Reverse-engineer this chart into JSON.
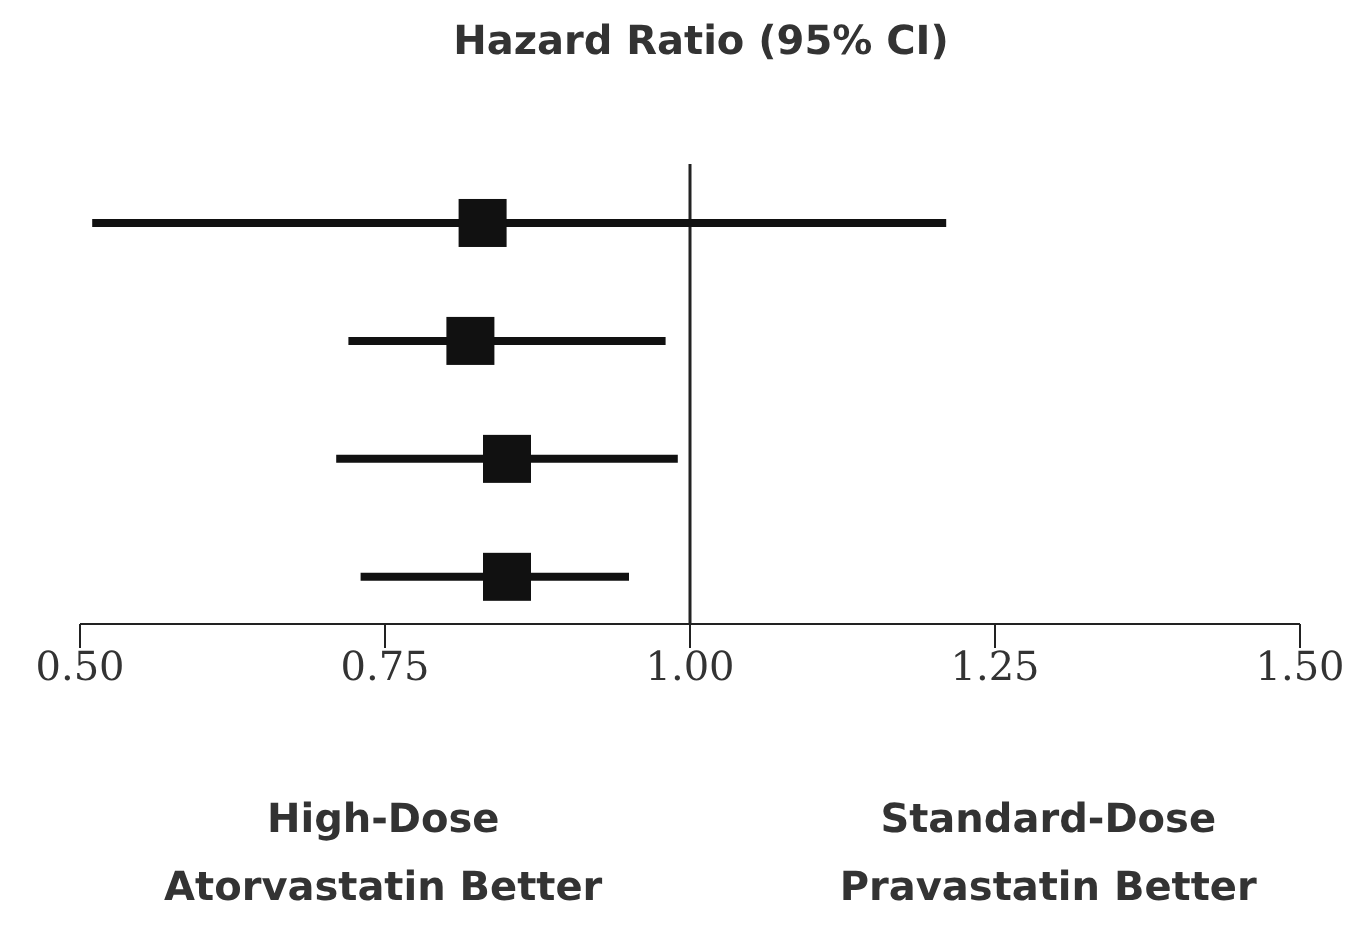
{
  "chart_data": {
    "type": "scatter",
    "orientation": "horizontal",
    "title": "Hazard Ratio (95% CI)",
    "categories": [
      null,
      null,
      null,
      null
    ],
    "values": [
      0.83,
      0.82,
      0.85,
      0.85
    ],
    "errors": [
      [
        0.51,
        1.21
      ],
      [
        0.72,
        0.98
      ],
      [
        0.71,
        0.99
      ],
      [
        0.73,
        0.95
      ]
    ],
    "color": "#111111",
    "marker": "square",
    "xlim": [
      0.5,
      1.5
    ],
    "xticks": [
      {
        "value": 0.5,
        "label": "0.50"
      },
      {
        "value": 0.75,
        "label": "0.75"
      },
      {
        "value": 1.0,
        "label": "1.00"
      },
      {
        "value": 1.25,
        "label": "1.25"
      },
      {
        "value": 1.5,
        "label": "1.50"
      }
    ],
    "tick_labels": "x",
    "ref_lines": [
      {
        "axis": "x",
        "value": 1.0,
        "color": "#222222"
      }
    ],
    "annotations": [
      "High-Dose\nAtorvastatin Better",
      "Standard-Dose\nPravastatin Better"
    ]
  }
}
